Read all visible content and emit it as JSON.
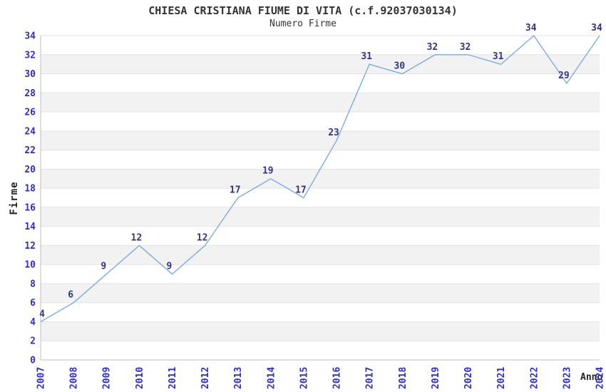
{
  "chart_data": {
    "type": "line",
    "title": "CHIESA CRISTIANA FIUME DI VITA (c.f.92037030134)",
    "subtitle": "Numero Firme",
    "xlabel": "Anno",
    "ylabel": "Firme",
    "categories": [
      "2007",
      "2008",
      "2009",
      "2010",
      "2011",
      "2012",
      "2013",
      "2014",
      "2015",
      "2016",
      "2017",
      "2018",
      "2019",
      "2020",
      "2021",
      "2022",
      "2023",
      "2024"
    ],
    "values": [
      4,
      6,
      9,
      12,
      9,
      12,
      17,
      19,
      17,
      23,
      31,
      30,
      32,
      32,
      31,
      34,
      29,
      34
    ],
    "ylim": [
      0,
      34
    ],
    "ytick_step": 2,
    "grid": "horizontal",
    "legend": "none",
    "band_fill": "alternating",
    "colors": {
      "line": "#79ade2",
      "tick_label": "#2d2dd2",
      "data_label": "#333388",
      "band": "#f2f2f2",
      "gridline": "#e2e2e2",
      "axis_line": "#c9c9c9",
      "title": "#333333",
      "axis_title": "#222222",
      "background": "#ffffff"
    }
  }
}
